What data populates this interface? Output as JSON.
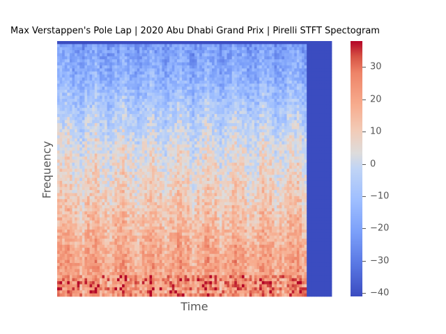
{
  "chart_data": {
    "type": "heatmap",
    "title": "Max Verstappen's Pole Lap | 2020 Abu Dhabi Grand Prix | Pirelli STFT Spectogram",
    "xlabel": "Time",
    "ylabel": "Frequency",
    "x_ticks_shown": false,
    "y_ticks_shown": false,
    "colormap": "coolwarm",
    "colorbar": {
      "range": [
        -41,
        38
      ],
      "ticks": [
        {
          "value": 30,
          "label": "30"
        },
        {
          "value": 20,
          "label": "20"
        },
        {
          "value": 10,
          "label": "10"
        },
        {
          "value": 0,
          "label": "0"
        },
        {
          "value": -10,
          "label": "−10"
        },
        {
          "value": -20,
          "label": "−20"
        },
        {
          "value": -30,
          "label": "−30"
        },
        {
          "value": -40,
          "label": "−40"
        }
      ]
    },
    "data_fraction_of_time_axis": 0.905,
    "padding_value": -41,
    "approx_band_levels_top_to_bottom": [
      -22,
      -15,
      -5,
      3,
      8,
      14,
      20
    ],
    "grid": false
  },
  "colors": {
    "cold": "#3b4cc0",
    "neutral": "#dddddd",
    "hot": "#b40426"
  }
}
